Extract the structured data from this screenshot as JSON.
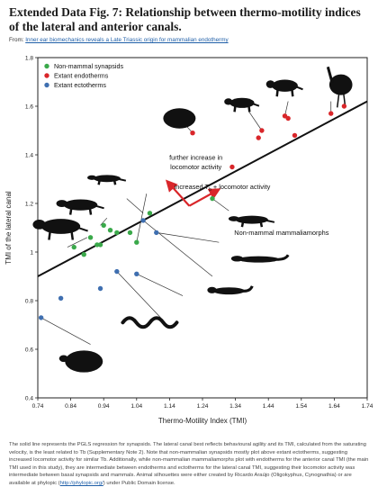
{
  "figure": {
    "title": "Extended Data Fig. 7: Relationship between thermo-motility indices of the lateral and anterior canals.",
    "from_label": "From:",
    "from_link": "Inner ear biomechanics reveals a Late Triassic origin for mammalian endothermy",
    "caption_text": "The solid line represents the PGLS regression for synapsids. The lateral canal best reflects behavioural agility and its TMI, calculated from the saturating velocity, is the least related to Tb (Supplementary Note 2). Note that non-mammalian synapsids mostly plot above extant ectotherms, suggesting increased locomotor activity for similar Tb. Additionally, while non-mammalian mammaliamorphs plot with endotherms for the anterior canal TMI (the main TMI used in this study), they are intermediate between endotherms and ectotherms for the lateral canal TMI, suggesting their locomotor activity was intermediate between basal synapsids and mammals. Animal silhouettes were either created by Ricardo Araújo (Oligokyphus, Cynognathia) or are available at phylopic (",
    "caption_link": "http://phylopic.org/",
    "caption_end": ") under Public Domain license."
  },
  "chart_data": {
    "type": "scatter",
    "xlabel": "Thermo-Motility Index (TMI)",
    "ylabel": "TMI of the lateral canal",
    "xlim": [
      0.74,
      1.74
    ],
    "ylim": [
      0.4,
      1.8
    ],
    "xticks": [
      "0.74",
      "0.84",
      "0.94",
      "1.04",
      "1.14",
      "1.24",
      "1.34",
      "1.44",
      "1.54",
      "1.64",
      "1.74"
    ],
    "yticks": [
      "0.4",
      "0.6",
      "0.8",
      "1",
      "1.2",
      "1.4",
      "1.6",
      "1.8"
    ],
    "grid": false,
    "legend_position": "top-left",
    "regression_line": {
      "x": [
        0.74,
        1.74
      ],
      "y": [
        0.9,
        1.62
      ]
    },
    "series": [
      {
        "name": "Non-mammal synapsids",
        "color": "#3aa94a",
        "points": [
          [
            0.85,
            1.02
          ],
          [
            0.88,
            0.99
          ],
          [
            0.9,
            1.06
          ],
          [
            0.92,
            1.03
          ],
          [
            0.93,
            1.03
          ],
          [
            0.94,
            1.11
          ],
          [
            0.96,
            1.09
          ],
          [
            0.98,
            1.08
          ],
          [
            1.02,
            1.08
          ],
          [
            1.04,
            1.04
          ],
          [
            1.08,
            1.16
          ],
          [
            1.27,
            1.22
          ]
        ]
      },
      {
        "name": "Extant endotherms",
        "color": "#d9262a",
        "points": [
          [
            1.21,
            1.49
          ],
          [
            1.33,
            1.35
          ],
          [
            1.41,
            1.47
          ],
          [
            1.42,
            1.5
          ],
          [
            1.49,
            1.56
          ],
          [
            1.5,
            1.55
          ],
          [
            1.52,
            1.48
          ],
          [
            1.63,
            1.57
          ],
          [
            1.67,
            1.6
          ]
        ]
      },
      {
        "name": "Extant ectotherms",
        "color": "#3f6fb0",
        "points": [
          [
            0.75,
            0.73
          ],
          [
            0.81,
            0.81
          ],
          [
            0.93,
            0.85
          ],
          [
            0.98,
            0.92
          ],
          [
            1.04,
            0.91
          ],
          [
            1.06,
            1.13
          ],
          [
            1.1,
            1.08
          ]
        ]
      }
    ],
    "annotations": [
      {
        "text": "further increase in",
        "x": 1.22,
        "y": 1.38
      },
      {
        "text": "locomotor activity",
        "x": 1.22,
        "y": 1.34
      },
      {
        "text": "increased T",
        "sub": "b",
        "rest": " + locomotor activity",
        "x": 1.3,
        "y": 1.26
      },
      {
        "text": "Non-mammal mammaliamorphs",
        "x": 1.48,
        "y": 1.07
      }
    ],
    "arrows": {
      "color": "#d9262a",
      "origin": [
        1.2,
        1.19
      ],
      "tips": [
        [
          1.14,
          1.28
        ],
        [
          1.28,
          1.25
        ]
      ]
    },
    "leader_lines": [
      [
        [
          0.89,
          1.06
        ],
        [
          0.83,
          1.02
        ]
      ],
      [
        [
          0.95,
          1.14
        ],
        [
          0.93,
          1.11
        ]
      ],
      [
        [
          1.01,
          1.22
        ],
        [
          1.06,
          1.16
        ]
      ],
      [
        [
          1.07,
          1.24
        ],
        [
          1.04,
          1.04
        ]
      ],
      [
        [
          1.32,
          1.17
        ],
        [
          1.27,
          1.22
        ]
      ],
      [
        [
          1.29,
          1.04
        ],
        [
          1.1,
          1.08
        ]
      ],
      [
        [
          1.27,
          0.9
        ],
        [
          1.06,
          1.13
        ]
      ],
      [
        [
          1.18,
          0.82
        ],
        [
          1.04,
          0.91
        ]
      ],
      [
        [
          1.12,
          0.72
        ],
        [
          0.98,
          0.92
        ]
      ],
      [
        [
          0.9,
          0.62
        ],
        [
          0.75,
          0.73
        ]
      ],
      [
        [
          1.17,
          1.55
        ],
        [
          1.21,
          1.49
        ]
      ],
      [
        [
          1.38,
          1.58
        ],
        [
          1.42,
          1.5
        ]
      ],
      [
        [
          1.5,
          1.62
        ],
        [
          1.49,
          1.56
        ]
      ],
      [
        [
          1.63,
          1.62
        ],
        [
          1.63,
          1.57
        ]
      ]
    ],
    "silhouettes": [
      {
        "name": "dicynodont-silhouette",
        "x": 0.81,
        "y": 1.1,
        "w": 60,
        "h": 30
      },
      {
        "name": "cynodont-silhouette",
        "x": 0.87,
        "y": 1.19,
        "w": 52,
        "h": 22
      },
      {
        "name": "small-synapsid-silhouette",
        "x": 0.95,
        "y": 1.3,
        "w": 42,
        "h": 14
      },
      {
        "name": "hedgehog-silhouette",
        "x": 1.17,
        "y": 1.55,
        "w": 40,
        "h": 28
      },
      {
        "name": "rat-silhouette",
        "x": 1.36,
        "y": 1.61,
        "w": 38,
        "h": 20
      },
      {
        "name": "aardvark-silhouette",
        "x": 1.49,
        "y": 1.68,
        "w": 40,
        "h": 24
      },
      {
        "name": "bird-silhouette",
        "x": 1.66,
        "y": 1.68,
        "w": 32,
        "h": 46
      },
      {
        "name": "mammaliamorph-silhouette",
        "x": 1.39,
        "y": 1.13,
        "w": 50,
        "h": 16
      },
      {
        "name": "salamander-silhouette",
        "x": 1.41,
        "y": 0.97,
        "w": 66,
        "h": 16
      },
      {
        "name": "newt-silhouette",
        "x": 1.32,
        "y": 0.84,
        "w": 52,
        "h": 18
      },
      {
        "name": "snake-silhouette",
        "x": 1.08,
        "y": 0.71,
        "w": 60,
        "h": 20
      },
      {
        "name": "turtle-silhouette",
        "x": 0.88,
        "y": 0.55,
        "w": 50,
        "h": 32
      }
    ]
  }
}
